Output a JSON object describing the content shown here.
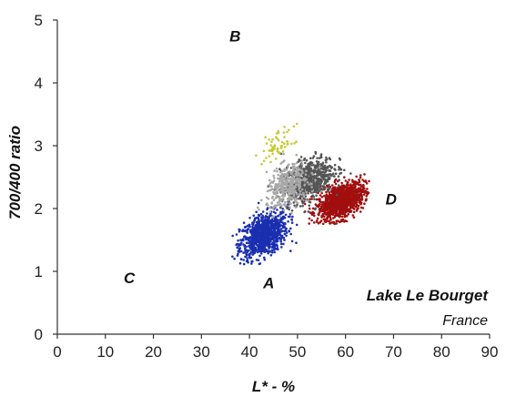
{
  "chart_data": {
    "type": "scatter",
    "xlabel": "L* - %",
    "ylabel": "700/400 ratio",
    "xlim": [
      0,
      90
    ],
    "ylim": [
      0,
      5
    ],
    "xticks": [
      "0",
      "10",
      "20",
      "30",
      "40",
      "50",
      "60",
      "70",
      "80",
      "90"
    ],
    "yticks": [
      "0",
      "1",
      "2",
      "3",
      "4",
      "5"
    ],
    "grid": false,
    "quadrant_labels": [
      {
        "text": "B",
        "x": 37,
        "y": 4.75
      },
      {
        "text": "C",
        "x": 15,
        "y": 0.9
      },
      {
        "text": "A",
        "x": 44,
        "y": 0.82
      },
      {
        "text": "D",
        "x": 69.5,
        "y": 2.15
      }
    ],
    "site_label": "Lake Le Bourget",
    "country_label": "France",
    "series": [
      {
        "color": "#1a2fb0",
        "center": [
          43,
          1.58
        ],
        "spread": [
          4.5,
          0.3
        ],
        "range": [
          36,
          50,
          1.1,
          2.15
        ],
        "count": 900
      },
      {
        "color": "#a10f0f",
        "center": [
          59,
          2.12
        ],
        "spread": [
          4.5,
          0.25
        ],
        "range": [
          50,
          65,
          1.75,
          2.55
        ],
        "count": 1100
      },
      {
        "color": "#555555",
        "center": [
          52,
          2.45
        ],
        "spread": [
          5,
          0.3
        ],
        "range": [
          43,
          63,
          1.9,
          3.0
        ],
        "count": 700
      },
      {
        "color": "#a8a8a8",
        "center": [
          48,
          2.35
        ],
        "spread": [
          4,
          0.3
        ],
        "range": [
          41,
          58,
          1.85,
          2.9
        ],
        "count": 350
      },
      {
        "color": "#c9c936",
        "center": [
          46,
          3.0
        ],
        "spread": [
          3,
          0.2
        ],
        "range": [
          40,
          52,
          2.7,
          3.35
        ],
        "count": 60
      }
    ]
  }
}
